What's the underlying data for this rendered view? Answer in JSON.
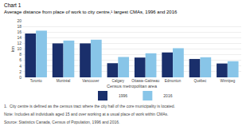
{
  "chart_data": {
    "type": "bar",
    "title": "Chart 1",
    "subtitle": "Average distance from place of work to city centre,¹ largest CMAs, 1996 and 2016",
    "xlabel": "Census metropolitan area",
    "ylabel": "km",
    "categories": [
      "Toronto",
      "Montréal",
      "Vancouver",
      "Calgary",
      "Ottawa–Gatineau",
      "Edmonton",
      "Québec",
      "Winnipeg"
    ],
    "series": [
      {
        "name": "1996",
        "color": "#1a2f6b",
        "values": [
          15.5,
          12.0,
          12.0,
          5.0,
          7.0,
          8.8,
          6.5,
          4.9
        ]
      },
      {
        "name": "2016",
        "color": "#88c5e8",
        "values": [
          16.5,
          13.0,
          13.3,
          7.2,
          8.5,
          10.3,
          7.1,
          5.7
        ]
      }
    ],
    "ylim": [
      0,
      20
    ],
    "yticks": [
      0,
      2,
      4,
      6,
      8,
      10,
      12,
      14,
      16,
      18,
      20
    ],
    "grid": true,
    "legend": "bottom",
    "annotations": [
      "1.  City centre is defined as the census tract where the city hall of the core municipality is located.",
      "Note: Includes all individuals aged 15 and over working at a usual place of work within CMAs.",
      "Source: Statistics Canada, Census of Population, 1996 and 2016."
    ]
  }
}
